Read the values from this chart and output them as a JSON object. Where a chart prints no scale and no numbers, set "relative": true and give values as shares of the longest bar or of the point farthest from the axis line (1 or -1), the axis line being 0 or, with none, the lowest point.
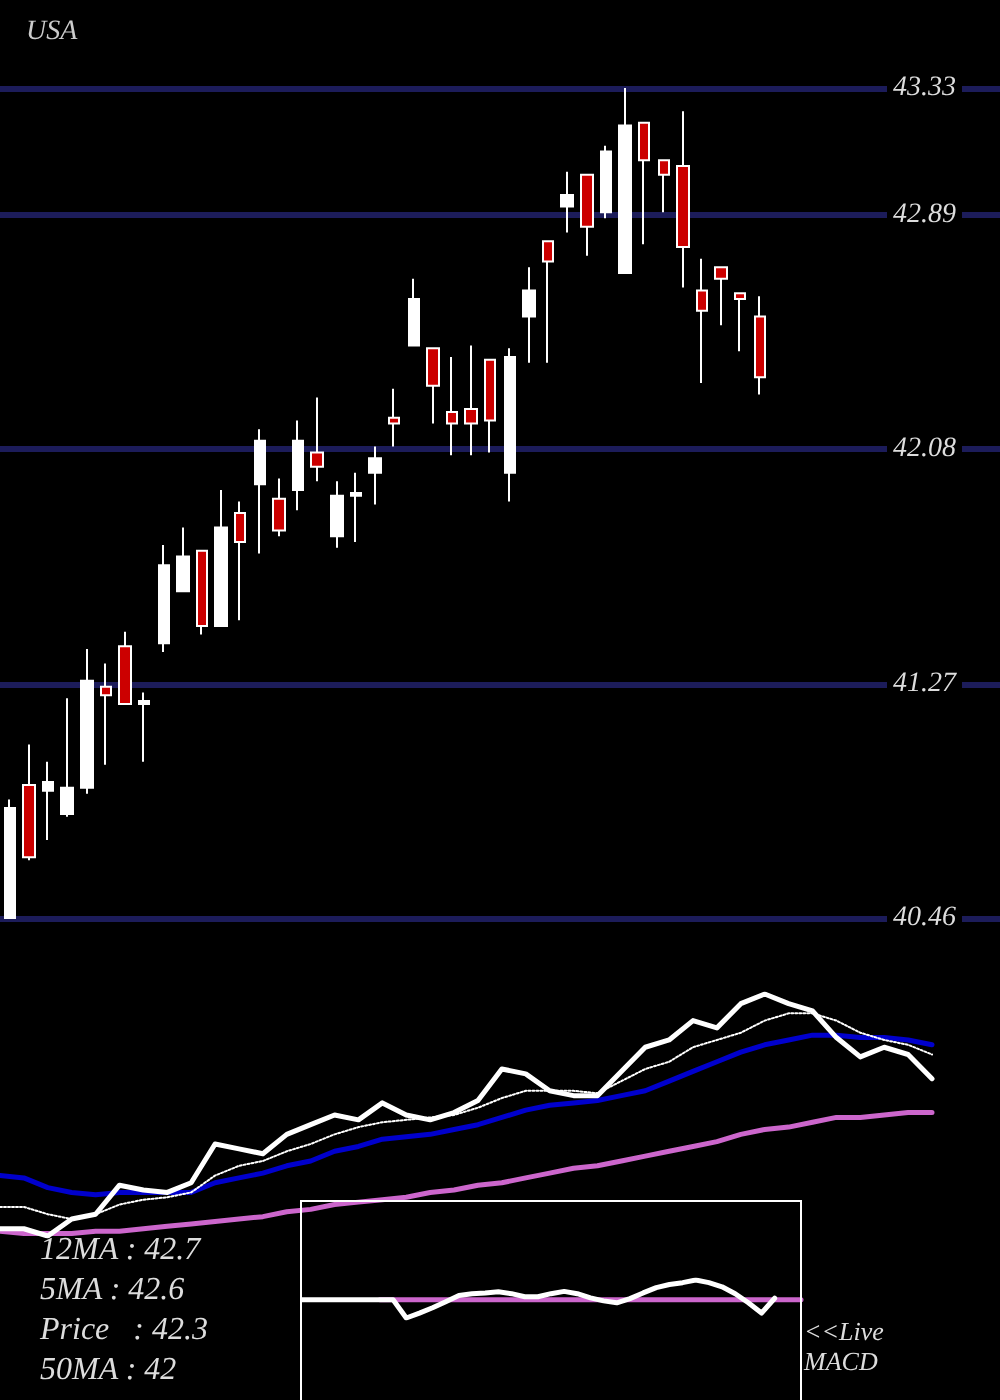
{
  "chart_data": [
    {
      "type": "candlestick",
      "title": "USA",
      "categories": [
        null,
        null,
        null,
        null,
        null,
        null,
        null,
        null,
        null,
        null,
        null,
        null,
        null,
        null,
        null,
        null,
        null,
        null,
        null,
        null,
        null,
        null,
        null,
        null,
        null,
        null,
        null,
        null,
        null,
        null,
        null,
        null,
        null,
        null,
        null,
        null,
        null,
        null,
        null,
        null,
        null,
        null,
        null,
        null,
        null,
        null,
        null,
        null,
        null,
        null,
        null,
        null
      ],
      "ohlc": [
        [
          40.46,
          40.87,
          40.46,
          40.84
        ],
        [
          40.92,
          41.06,
          40.66,
          40.67
        ],
        [
          40.9,
          41.0,
          40.73,
          40.93
        ],
        [
          40.82,
          41.22,
          40.81,
          40.91
        ],
        [
          40.91,
          41.39,
          40.89,
          41.28
        ],
        [
          41.26,
          41.34,
          40.99,
          41.23
        ],
        [
          41.4,
          41.45,
          41.2,
          41.2
        ],
        [
          41.2,
          41.24,
          41.0,
          41.21
        ],
        [
          41.41,
          41.75,
          41.38,
          41.68
        ],
        [
          41.59,
          41.81,
          41.59,
          41.71
        ],
        [
          41.73,
          41.73,
          41.44,
          41.47
        ],
        [
          41.47,
          41.94,
          41.47,
          41.81
        ],
        [
          41.86,
          41.9,
          41.49,
          41.76
        ],
        [
          41.96,
          42.15,
          41.72,
          42.11
        ],
        [
          41.91,
          41.98,
          41.78,
          41.8
        ],
        [
          41.94,
          42.18,
          41.87,
          42.11
        ],
        [
          42.07,
          42.26,
          41.97,
          42.02
        ],
        [
          41.78,
          41.97,
          41.74,
          41.92
        ],
        [
          41.92,
          42.0,
          41.76,
          41.93
        ],
        [
          42.0,
          42.09,
          41.89,
          42.05
        ],
        [
          42.19,
          42.29,
          42.09,
          42.17
        ],
        [
          42.44,
          42.67,
          42.44,
          42.6
        ],
        [
          42.43,
          42.43,
          42.17,
          42.3
        ],
        [
          42.21,
          42.4,
          42.06,
          42.17
        ],
        [
          42.22,
          42.44,
          42.06,
          42.17
        ],
        [
          42.39,
          42.39,
          42.07,
          42.18
        ],
        [
          42.0,
          42.43,
          41.9,
          42.4
        ],
        [
          42.54,
          42.71,
          42.38,
          42.63
        ],
        [
          42.8,
          42.8,
          42.38,
          42.73
        ],
        [
          42.92,
          43.04,
          42.83,
          42.96
        ],
        [
          43.03,
          43.03,
          42.75,
          42.85
        ],
        [
          42.9,
          43.13,
          42.88,
          43.11
        ],
        [
          42.69,
          43.33,
          42.69,
          43.2
        ],
        [
          43.21,
          43.21,
          42.79,
          43.08
        ],
        [
          43.08,
          43.08,
          42.9,
          43.03
        ],
        [
          43.06,
          43.25,
          42.64,
          42.78
        ],
        [
          42.63,
          42.74,
          42.31,
          42.56
        ],
        [
          42.71,
          42.71,
          42.51,
          42.67
        ],
        [
          42.62,
          42.62,
          42.42,
          42.6
        ],
        [
          42.54,
          42.61,
          42.27,
          42.33
        ],
        null,
        null,
        null,
        null,
        null,
        null,
        null,
        null,
        null,
        null,
        null,
        null
      ],
      "colors": [
        "#ffffff",
        "#cc0000",
        "#ffffff",
        "#ffffff",
        "#ffffff",
        "#cc0000",
        "#cc0000",
        "#ffffff",
        "#ffffff",
        "#ffffff",
        "#cc0000",
        "#ffffff",
        "#cc0000",
        "#ffffff",
        "#cc0000",
        "#ffffff",
        "#cc0000",
        "#ffffff",
        "#ffffff",
        "#ffffff",
        "#cc0000",
        "#ffffff",
        "#cc0000",
        "#cc0000",
        "#cc0000",
        "#cc0000",
        "#ffffff",
        "#ffffff",
        "#cc0000",
        "#ffffff",
        "#cc0000",
        "#ffffff",
        "#ffffff",
        "#cc0000",
        "#cc0000",
        "#cc0000",
        "#cc0000",
        "#cc0000",
        "#cc0000",
        "#cc0000",
        null,
        null,
        null,
        null,
        null,
        null,
        null,
        null,
        null,
        null,
        null,
        null
      ],
      "ylim": [
        40.46,
        43.33
      ],
      "yticks": [
        40.46,
        41.27,
        42.08,
        42.89,
        43.33
      ],
      "grid": "y",
      "tick_labels": "y"
    },
    {
      "type": "line",
      "relative": true,
      "tick_labels": false,
      "marker": "none",
      "categories": [
        null,
        null,
        null,
        null,
        null,
        null,
        null,
        null,
        null,
        null,
        null,
        null,
        null,
        null,
        null,
        null,
        null,
        null,
        null,
        null,
        null,
        null,
        null,
        null,
        null,
        null,
        null,
        null,
        null,
        null,
        null,
        null,
        null,
        null,
        null,
        null,
        null,
        null,
        null,
        null
      ],
      "series": [
        {
          "color": "#cc66cc",
          "values": [
            0.02,
            0.01,
            0.01,
            0.01,
            0.02,
            0.02,
            0.03,
            0.04,
            0.05,
            0.06,
            0.07,
            0.08,
            0.1,
            0.11,
            0.13,
            0.14,
            0.15,
            0.16,
            0.18,
            0.19,
            0.21,
            0.22,
            0.24,
            0.26,
            0.28,
            0.29,
            0.31,
            0.33,
            0.35,
            0.37,
            0.39,
            0.42,
            0.44,
            0.45,
            0.47,
            0.49,
            0.49,
            0.5,
            0.51,
            0.51
          ]
        },
        {
          "color": "#0000cc",
          "values": [
            0.25,
            0.24,
            0.2,
            0.18,
            0.17,
            0.18,
            0.18,
            0.18,
            0.18,
            0.22,
            0.24,
            0.26,
            0.29,
            0.31,
            0.35,
            0.37,
            0.4,
            0.41,
            0.42,
            0.44,
            0.46,
            0.49,
            0.52,
            0.54,
            0.55,
            0.56,
            0.58,
            0.6,
            0.64,
            0.68,
            0.72,
            0.76,
            0.79,
            0.81,
            0.83,
            0.83,
            0.82,
            0.82,
            0.81,
            0.79
          ]
        },
        {
          "color": "#ffffff",
          "line_style": "dotted",
          "values": [
            0.12,
            0.12,
            0.09,
            0.07,
            0.09,
            0.13,
            0.15,
            0.16,
            0.18,
            0.25,
            0.29,
            0.31,
            0.35,
            0.38,
            0.42,
            0.45,
            0.47,
            0.48,
            0.49,
            0.5,
            0.53,
            0.57,
            0.6,
            0.6,
            0.6,
            0.59,
            0.64,
            0.69,
            0.72,
            0.78,
            0.81,
            0.84,
            0.89,
            0.92,
            0.92,
            0.89,
            0.84,
            0.81,
            0.79,
            0.75
          ]
        },
        {
          "color": "#ffffff",
          "values": [
            0.03,
            0.03,
            0,
            0.07,
            0.09,
            0.21,
            0.19,
            0.18,
            0.22,
            0.38,
            0.36,
            0.34,
            0.42,
            0.46,
            0.5,
            0.48,
            0.55,
            0.5,
            0.48,
            0.51,
            0.56,
            0.69,
            0.67,
            0.6,
            0.58,
            0.58,
            0.68,
            0.78,
            0.81,
            0.89,
            0.86,
            0.96,
            1,
            0.96,
            0.93,
            0.82,
            0.74,
            0.78,
            0.75,
            0.65
          ]
        }
      ],
      "annotations": [
        "12MA : 42.7",
        "5MA : 42.6",
        "Price   : 42.3",
        "50MA : 42"
      ]
    },
    {
      "type": "line",
      "relative": true,
      "tick_labels": false,
      "marker": "none",
      "categories": [
        null,
        null,
        null,
        null,
        null,
        null,
        null,
        null,
        null,
        null,
        null,
        null,
        null,
        null,
        null,
        null,
        null,
        null,
        null,
        null,
        null,
        null,
        null,
        null,
        null,
        null,
        null,
        null,
        null,
        null,
        null,
        null,
        null,
        null,
        null,
        null,
        null,
        null,
        null
      ],
      "series": [
        {
          "color": "#cc66cc",
          "values": [
            null,
            null,
            null,
            null,
            null,
            null,
            0.48,
            0.48,
            0.48,
            0.48,
            0.48,
            0.48,
            0.48,
            0.48,
            0.48,
            0.48,
            0.48,
            0.48,
            0.48,
            0.48,
            0.48,
            0.48,
            0.48,
            0.48,
            0.48,
            0.48,
            0.48,
            0.48,
            0.48,
            0.48,
            0.48,
            0.48,
            0.48,
            0.48,
            0.48,
            0.48,
            0.48,
            0.48,
            0.48
          ]
        },
        {
          "color": "#ffffff",
          "values": [
            0.48,
            0.48,
            0.48,
            0.48,
            0.48,
            0.48,
            0.48,
            0.48,
            0,
            0.13,
            0.27,
            0.43,
            0.59,
            0.64,
            0.66,
            0.69,
            0.64,
            0.56,
            0.56,
            0.64,
            0.7,
            0.64,
            0.53,
            0.45,
            0.4,
            0.51,
            0.66,
            0.8,
            0.88,
            0.93,
            1,
            0.93,
            0.82,
            0.64,
            0.4,
            0.13,
            0.52,
            null,
            null
          ]
        }
      ],
      "annotations": [
        "<<Live MACD"
      ]
    }
  ]
}
